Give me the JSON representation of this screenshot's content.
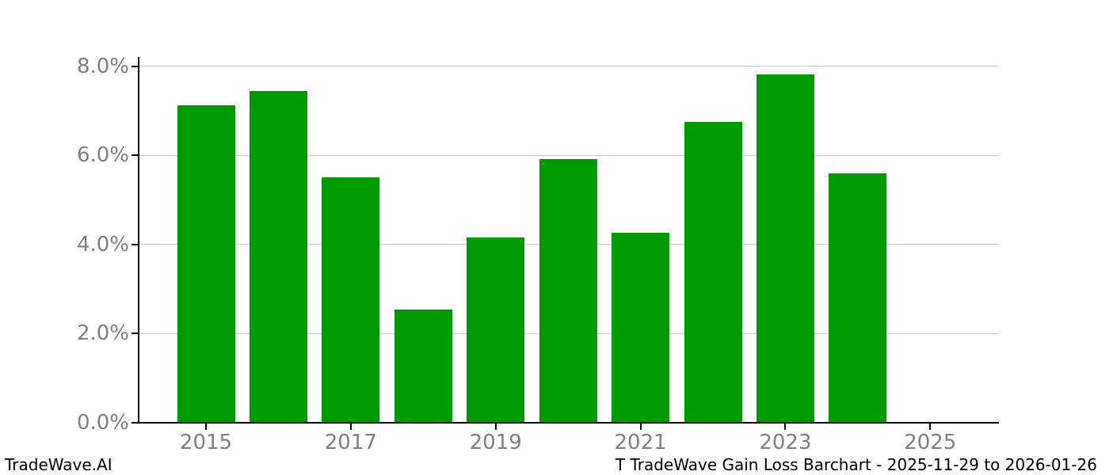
{
  "chart_data": {
    "type": "bar",
    "title": "T TradeWave Gain Loss Barchart - 2025-11-29 to 2026-01-26",
    "xlabel": "",
    "ylabel": "",
    "unit": "%",
    "categories": [
      "2015",
      "2016",
      "2017",
      "2018",
      "2019",
      "2020",
      "2021",
      "2022",
      "2023",
      "2024"
    ],
    "values": [
      7.13,
      7.44,
      5.51,
      2.54,
      4.16,
      5.92,
      4.27,
      6.75,
      7.82,
      5.6
    ],
    "ylim": [
      0,
      8.21
    ],
    "y_ticks": [
      {
        "value": 0,
        "label": "0.0%"
      },
      {
        "value": 2,
        "label": "2.0%"
      },
      {
        "value": 4,
        "label": "4.0%"
      },
      {
        "value": 6,
        "label": "6.0%"
      },
      {
        "value": 8,
        "label": "8.0%"
      }
    ],
    "x_ticks": [
      {
        "year": 2015,
        "label": "2015"
      },
      {
        "year": 2017,
        "label": "2017"
      },
      {
        "year": 2019,
        "label": "2019"
      },
      {
        "year": 2021,
        "label": "2021"
      },
      {
        "year": 2023,
        "label": "2023"
      },
      {
        "year": 2025,
        "label": "2025"
      }
    ],
    "grid": "horizontal",
    "legend": "none",
    "colors": {
      "bar": "#009a00",
      "grid": "#cccccc",
      "tick_label": "#808080",
      "spine": "#000000",
      "background": "#ffffff"
    }
  },
  "footer": {
    "brand": "TradeWave.AI",
    "title": "T TradeWave Gain Loss Barchart - 2025-11-29 to 2026-01-26"
  }
}
